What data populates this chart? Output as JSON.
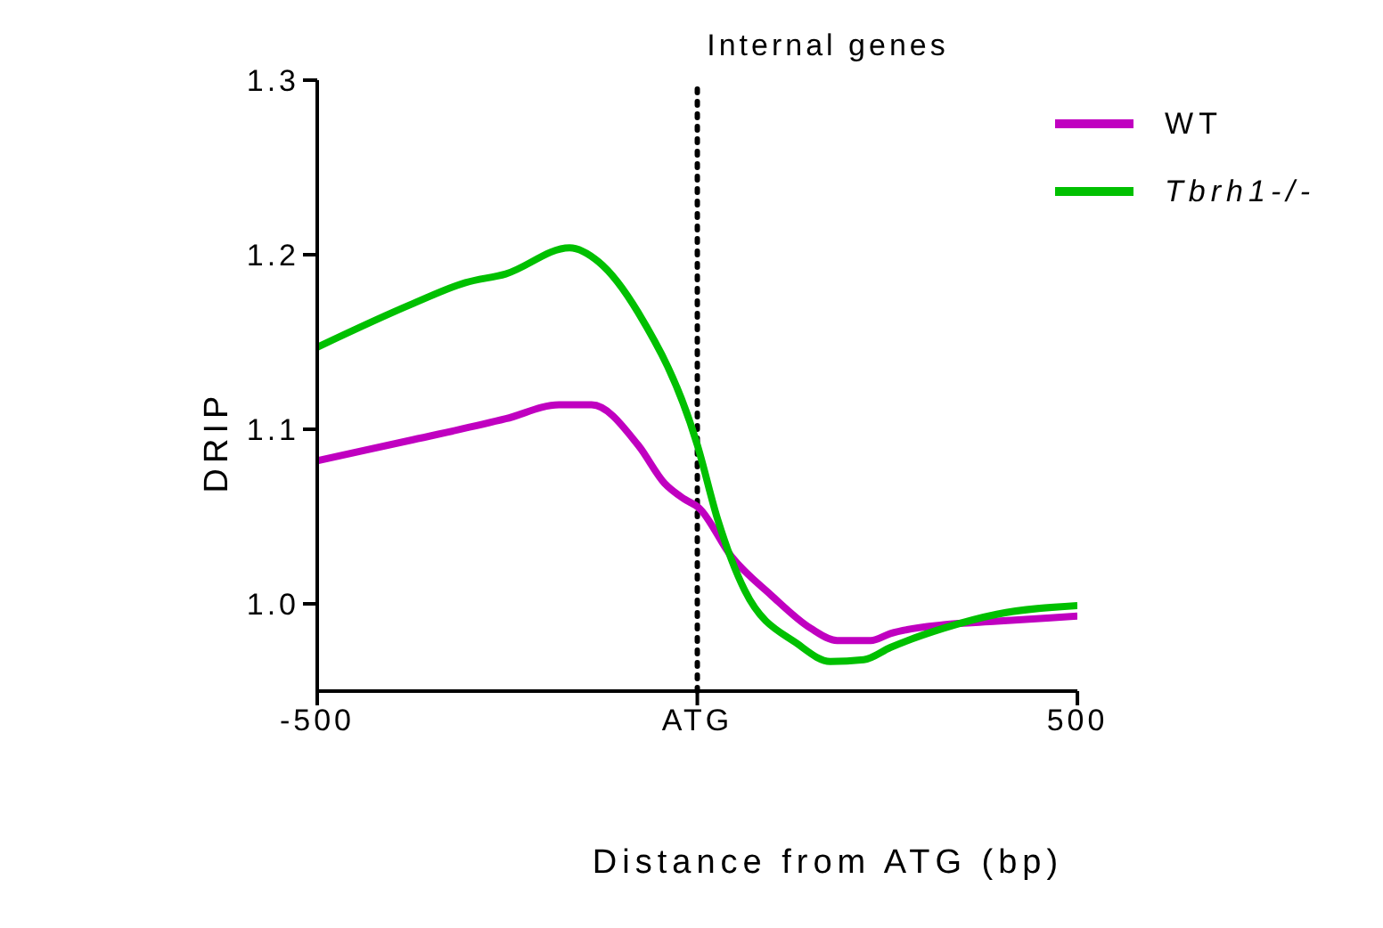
{
  "chart_data": {
    "type": "line",
    "title": "Internal genes",
    "xlabel": "Distance from ATG (bp)",
    "ylabel": "DRIP",
    "xlim": [
      -500,
      500
    ],
    "xticks": [
      -500,
      {
        "value": 0,
        "label": "ATG"
      },
      500
    ],
    "ylim": [
      0.95,
      1.3
    ],
    "yticks": [
      {
        "value": 1,
        "label": "1.0"
      },
      1.1,
      1.2,
      1.3
    ],
    "grid": false,
    "legend": "top right",
    "marker": "none",
    "line_style": "solid",
    "ref_lines": [
      {
        "axis": "x",
        "value": 0,
        "line_style": "dotted",
        "color": "#000000"
      }
    ],
    "series": [
      {
        "name": "WT",
        "color": "#c000c0",
        "x": [
          -500,
          -374,
          -252,
          -182,
          -139,
          -78,
          -43,
          -17,
          2,
          45,
          97,
          149,
          184,
          228,
          254,
          324,
          394,
          500
        ],
        "values": [
          1.082,
          1.094,
          1.106,
          1.114,
          1.114,
          1.091,
          1.069,
          1.06,
          1.055,
          1.027,
          1.005,
          0.986,
          0.979,
          0.979,
          0.983,
          0.988,
          0.99,
          0.993
        ]
      },
      {
        "name": "Tbrh1-/-",
        "color": "#00c000",
        "x": [
          -500,
          -374,
          -305,
          -252,
          -168,
          -130,
          -78,
          0,
          27,
          62,
          132,
          175,
          219,
          254,
          324,
          394,
          500
        ],
        "values": [
          1.147,
          1.172,
          1.184,
          1.189,
          1.204,
          1.196,
          1.167,
          1.091,
          1.048,
          1.008,
          0.977,
          0.967,
          0.968,
          0.975,
          0.986,
          0.994,
          0.999
        ]
      }
    ]
  }
}
